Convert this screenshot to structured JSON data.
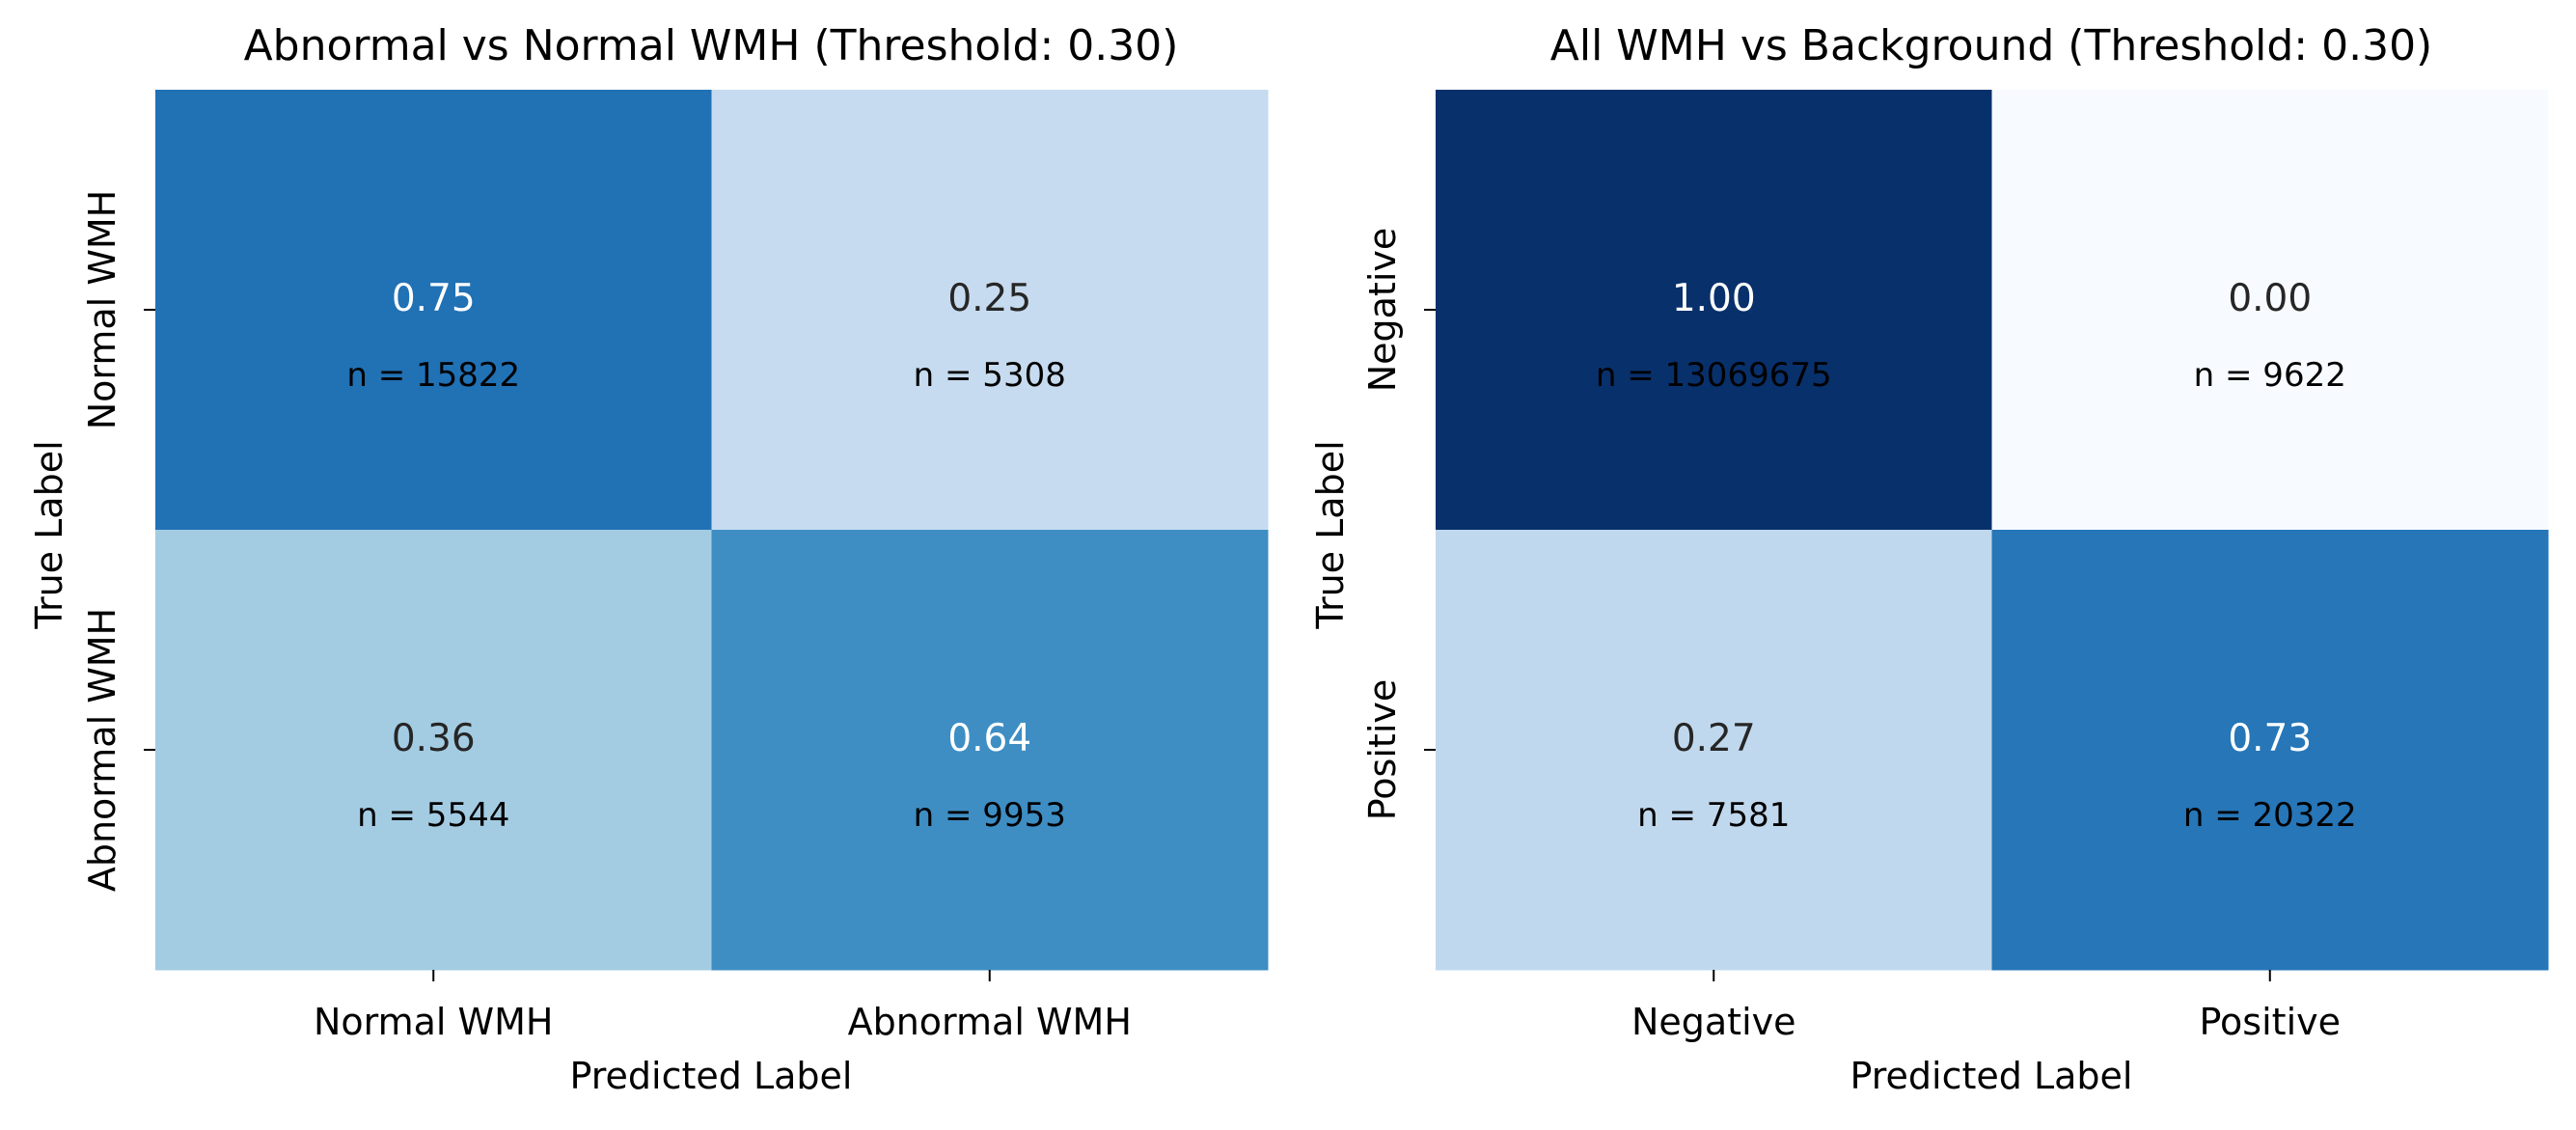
{
  "chart_data": [
    {
      "type": "heatmap",
      "title": "Abnormal vs Normal WMH (Threshold: 0.30)",
      "xlabel": "Predicted Label",
      "ylabel": "True Label",
      "x_categories": [
        "Normal WMH",
        "Abnormal WMH"
      ],
      "y_categories": [
        "Normal WMH",
        "Abnormal WMH"
      ],
      "values": [
        [
          0.75,
          0.25
        ],
        [
          0.36,
          0.64
        ]
      ],
      "value_labels": [
        [
          "0.75",
          "0.25"
        ],
        [
          "0.36",
          "0.64"
        ]
      ],
      "counts": [
        [
          15822,
          5308
        ],
        [
          5544,
          9953
        ]
      ],
      "count_labels": [
        [
          "n = 15822",
          "n = 5308"
        ],
        [
          "n = 5544",
          "n = 9953"
        ]
      ],
      "colormap": "Blues",
      "vmin": 0,
      "vmax": 1
    },
    {
      "type": "heatmap",
      "title": "All WMH vs Background (Threshold: 0.30)",
      "xlabel": "Predicted Label",
      "ylabel": "True Label",
      "x_categories": [
        "Negative",
        "Positive"
      ],
      "y_categories": [
        "Negative",
        "Positive"
      ],
      "values": [
        [
          1.0,
          0.0
        ],
        [
          0.27,
          0.73
        ]
      ],
      "value_labels": [
        [
          "1.00",
          "0.00"
        ],
        [
          "0.27",
          "0.73"
        ]
      ],
      "counts": [
        [
          13069675,
          9622
        ],
        [
          7581,
          20322
        ]
      ],
      "count_labels": [
        [
          "n = 13069675",
          "n = 9622"
        ],
        [
          "n = 7581",
          "n = 20322"
        ]
      ],
      "colormap": "Blues",
      "vmin": 0,
      "vmax": 1
    }
  ]
}
